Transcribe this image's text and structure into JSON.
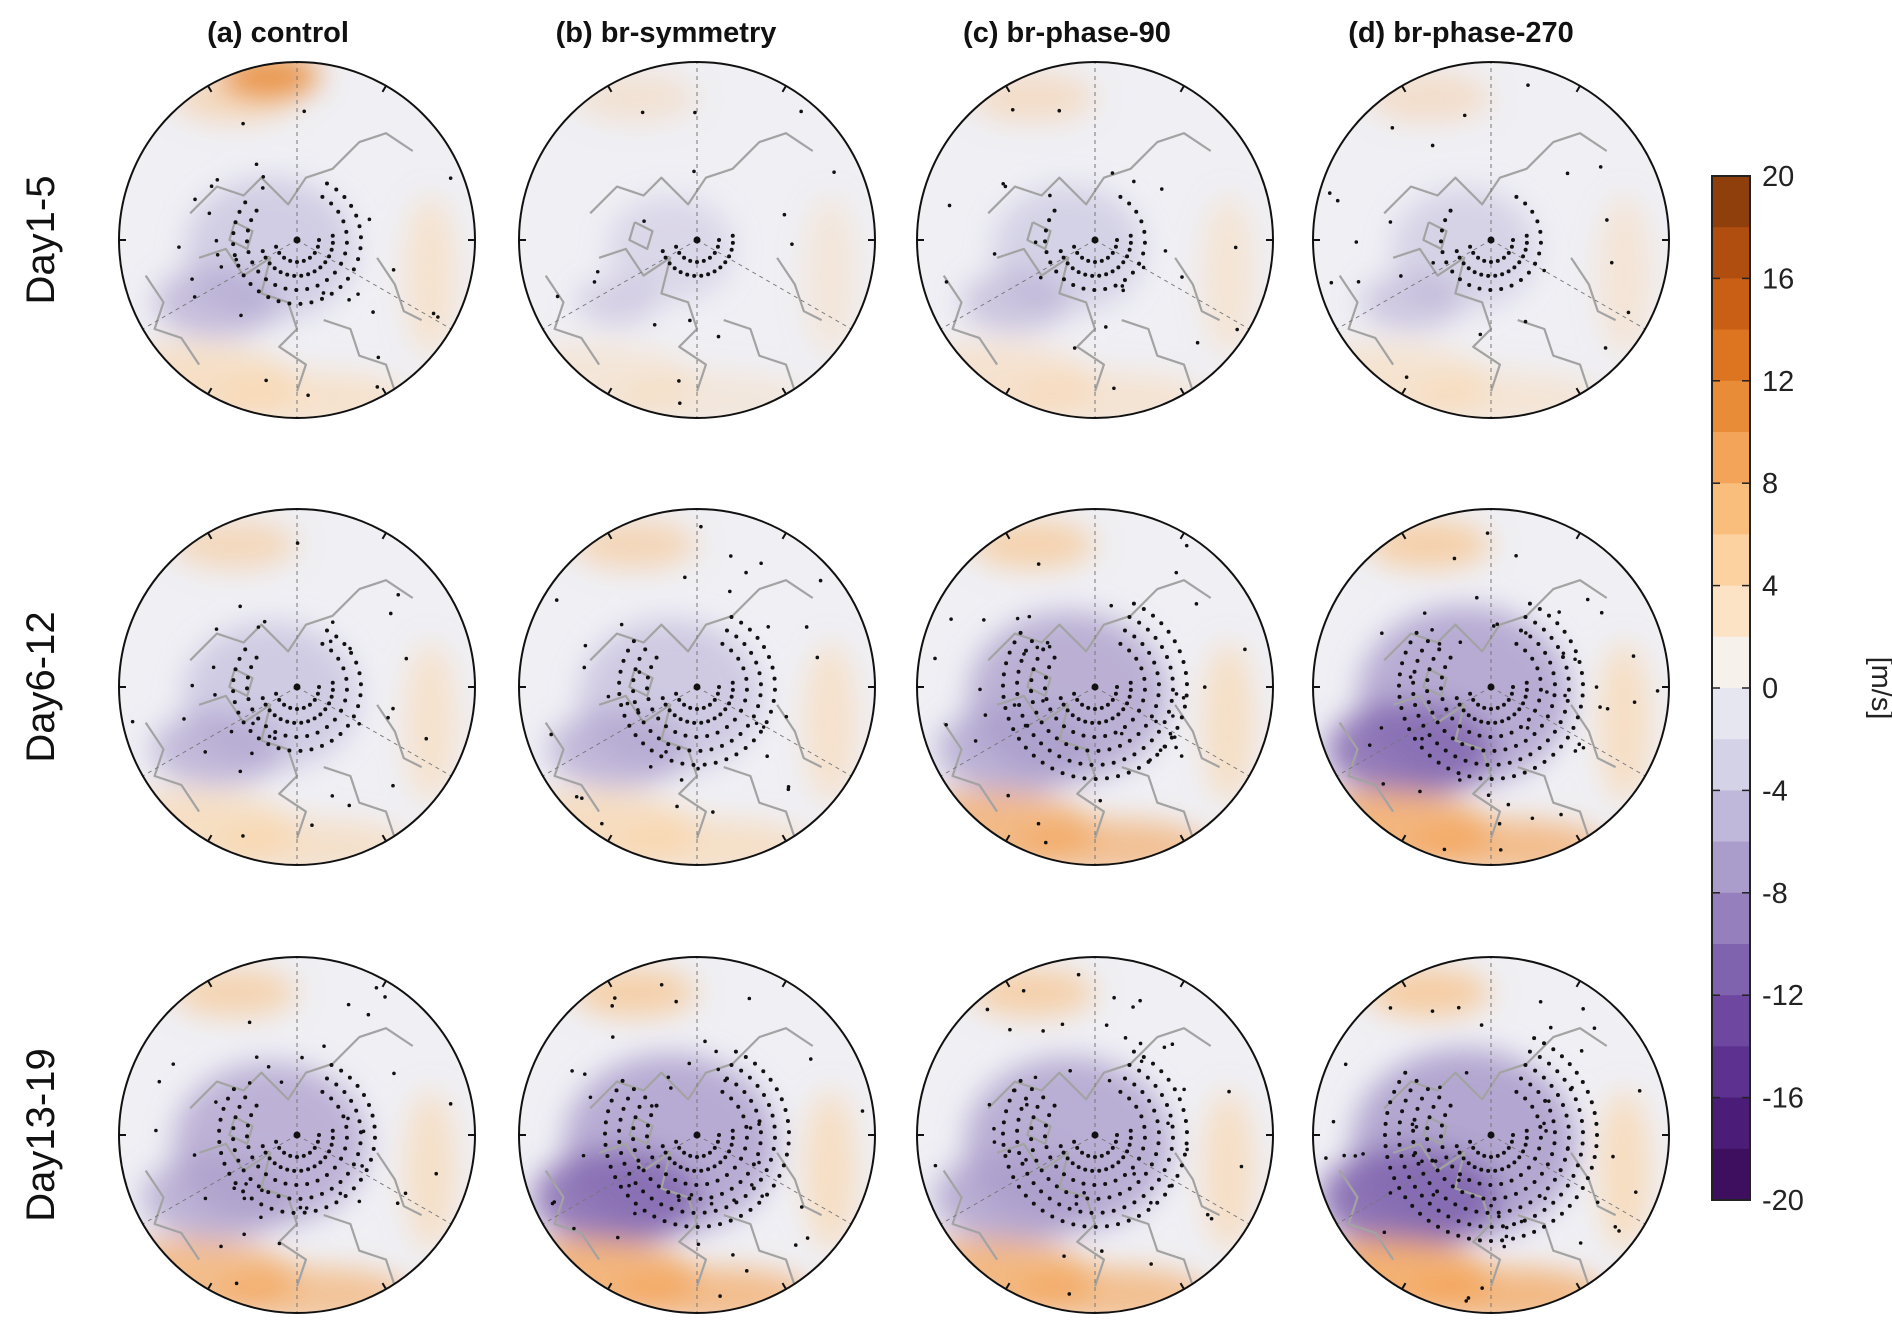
{
  "column_titles": [
    "(a) control",
    "(b) br-symmetry",
    "(c) br-phase-90",
    "(d) br-phase-270"
  ],
  "row_labels": [
    "Day1-5",
    "Day6-12",
    "Day13-19"
  ],
  "colorbar": {
    "unit": "[m/s]",
    "ticks": [
      "20",
      "16",
      "12",
      "8",
      "4",
      "0",
      "-4",
      "-8",
      "-12",
      "-16",
      "-20"
    ],
    "range": [
      -20,
      20
    ],
    "level_step": 2,
    "colors": [
      "#3d0f5e",
      "#4b1d78",
      "#5c3190",
      "#6e47a0",
      "#8063ae",
      "#9580bd",
      "#aa9ccb",
      "#bfb8da",
      "#d4d2e7",
      "#e6e6f0",
      "#f7f1eb",
      "#fde3c6",
      "#fcd2a1",
      "#f9bd7c",
      "#f4a458",
      "#e98c38",
      "#dc7420",
      "#c95f14",
      "#b04e10",
      "#8e3f0c"
    ]
  },
  "panels": [
    {
      "row": 0,
      "col": 0,
      "intensity": 0.5
    },
    {
      "row": 0,
      "col": 1,
      "intensity": 0.15
    },
    {
      "row": 0,
      "col": 2,
      "intensity": 0.35
    },
    {
      "row": 0,
      "col": 3,
      "intensity": 0.3
    },
    {
      "row": 1,
      "col": 0,
      "intensity": 0.55
    },
    {
      "row": 1,
      "col": 1,
      "intensity": 0.6
    },
    {
      "row": 1,
      "col": 2,
      "intensity": 0.75
    },
    {
      "row": 1,
      "col": 3,
      "intensity": 0.85
    },
    {
      "row": 2,
      "col": 0,
      "intensity": 0.7
    },
    {
      "row": 2,
      "col": 1,
      "intensity": 0.85
    },
    {
      "row": 2,
      "col": 2,
      "intensity": 0.8
    },
    {
      "row": 2,
      "col": 3,
      "intensity": 0.95
    }
  ]
}
